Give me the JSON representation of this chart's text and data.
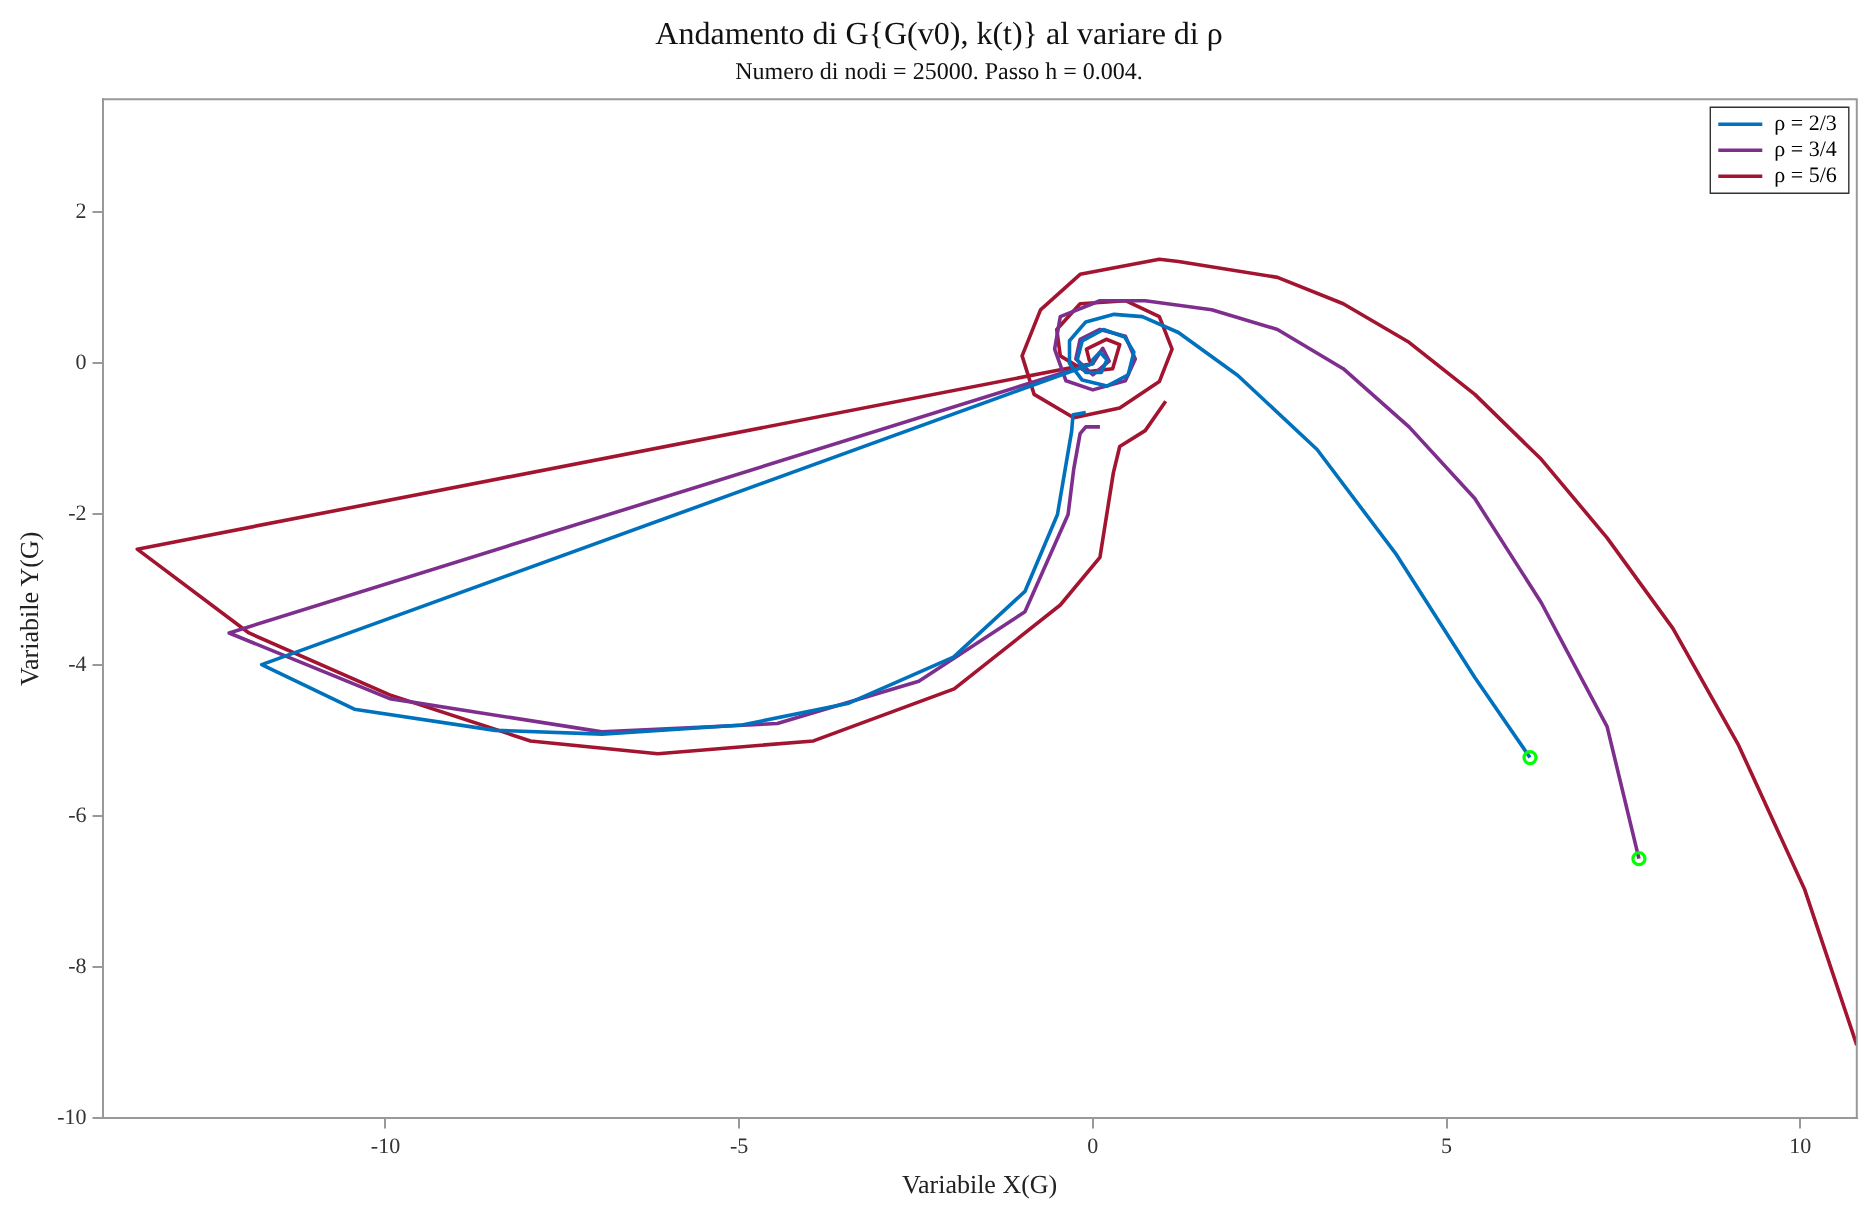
{
  "chart_data": {
    "type": "line",
    "title": "Andamento di G{G(v0), k(t)} al variare di ρ",
    "subtitle": "Numero di nodi = 25000. Passo h = 0.004.",
    "xlabel": "Variabile X(G)",
    "ylabel": "Variabile Y(G)",
    "xlim": [
      -14,
      10.8
    ],
    "xticks": [
      -10,
      -5,
      0,
      5,
      10
    ],
    "ylim": [
      -10,
      3.5
    ],
    "yticks": [
      -10,
      -8,
      -6,
      -4,
      -2,
      0,
      2
    ],
    "grid": false,
    "legend": "top right",
    "line_style": "solid",
    "series": [
      {
        "name": "ρ = 2/3",
        "color": "#0072bd",
        "type": "line",
        "marker": "none",
        "x": [
          6.18,
          5.4,
          4.29,
          3.17,
          2.05,
          1.21,
          0.7,
          0.3,
          -0.1,
          -0.33,
          -0.33,
          -0.15,
          0.2,
          0.5,
          0.58,
          0.45,
          0.15,
          -0.15,
          -0.22,
          -0.1,
          0.12,
          0.2,
          0.1,
          0,
          0,
          -11.75,
          -10.44,
          -8.45,
          -6.94,
          -4.96,
          -3.45,
          -1.97,
          -0.96,
          -0.5,
          -0.4,
          -0.3,
          -0.28,
          -0.1
        ],
        "values": [
          -5.22,
          -4.16,
          -2.53,
          -1.14,
          -0.16,
          0.41,
          0.62,
          0.65,
          0.55,
          0.3,
          0,
          -0.22,
          -0.3,
          -0.15,
          0.15,
          0.35,
          0.45,
          0.3,
          0.05,
          -0.12,
          -0.12,
          0.05,
          0.15,
          0.05,
          0,
          -3.99,
          -4.58,
          -4.86,
          -4.91,
          -4.79,
          -4.5,
          -3.89,
          -3.02,
          -2.0,
          -1.45,
          -0.9,
          -0.68,
          -0.65
        ]
      },
      {
        "name": "ρ = 3/4",
        "color": "#7e2f8e",
        "type": "line",
        "marker": "none",
        "x": [
          7.72,
          7.27,
          6.34,
          5.4,
          4.47,
          3.54,
          2.61,
          1.68,
          0.74,
          0.1,
          -0.46,
          -0.54,
          -0.38,
          0,
          0.46,
          0.6,
          0.46,
          0.1,
          -0.18,
          -0.24,
          0,
          0.23,
          0.14,
          0,
          -12.21,
          -9.94,
          -6.94,
          -4.46,
          -2.46,
          -0.96,
          -0.35,
          -0.27,
          -0.18,
          -0.1,
          0.1
        ],
        "values": [
          -6.56,
          -4.81,
          -3.17,
          -1.79,
          -0.84,
          -0.07,
          0.45,
          0.71,
          0.83,
          0.83,
          0.62,
          0.19,
          -0.23,
          -0.35,
          -0.23,
          0.06,
          0.36,
          0.45,
          0.32,
          0.06,
          -0.15,
          0.03,
          0.2,
          0,
          -3.57,
          -4.44,
          -4.88,
          -4.77,
          -4.21,
          -3.29,
          -2.0,
          -1.4,
          -0.93,
          -0.84,
          -0.84
        ]
      },
      {
        "name": "ρ = 5/6",
        "color": "#a2142f",
        "type": "line",
        "marker": "none",
        "x": [
          10.8,
          10.06,
          9.13,
          8.2,
          7.27,
          6.34,
          5.4,
          4.47,
          3.54,
          2.61,
          1.21,
          0.94,
          -0.18,
          -0.74,
          -1.0,
          -0.83,
          -0.27,
          0.38,
          0.94,
          1.12,
          0.94,
          0.47,
          -0.18,
          -0.51,
          -0.46,
          -0.09,
          0.28,
          0.38,
          0.19,
          -0.09,
          -0.05,
          0,
          -13.51,
          -11.93,
          -9.94,
          -7.95,
          -6.15,
          -3.95,
          -1.96,
          -0.46,
          0.1,
          0.29,
          0.38,
          0.74,
          1.03
        ],
        "values": [
          -9.03,
          -6.96,
          -5.06,
          -3.51,
          -2.31,
          -1.27,
          -0.41,
          0.28,
          0.79,
          1.14,
          1.35,
          1.38,
          1.18,
          0.71,
          0.1,
          -0.41,
          -0.72,
          -0.59,
          -0.24,
          0.19,
          0.62,
          0.83,
          0.79,
          0.45,
          0.1,
          -0.11,
          -0.07,
          0.25,
          0.32,
          0.19,
          0.04,
          0,
          -2.46,
          -3.57,
          -4.39,
          -5.0,
          -5.17,
          -5.0,
          -4.31,
          -3.2,
          -2.57,
          -1.45,
          -1.1,
          -0.89,
          -0.5
        ]
      },
      {
        "color": "#00ff00",
        "type": "scatter",
        "marker": "circle",
        "x": [
          6.18,
          7.72
        ],
        "values": [
          -5.22,
          -6.56
        ]
      }
    ]
  }
}
